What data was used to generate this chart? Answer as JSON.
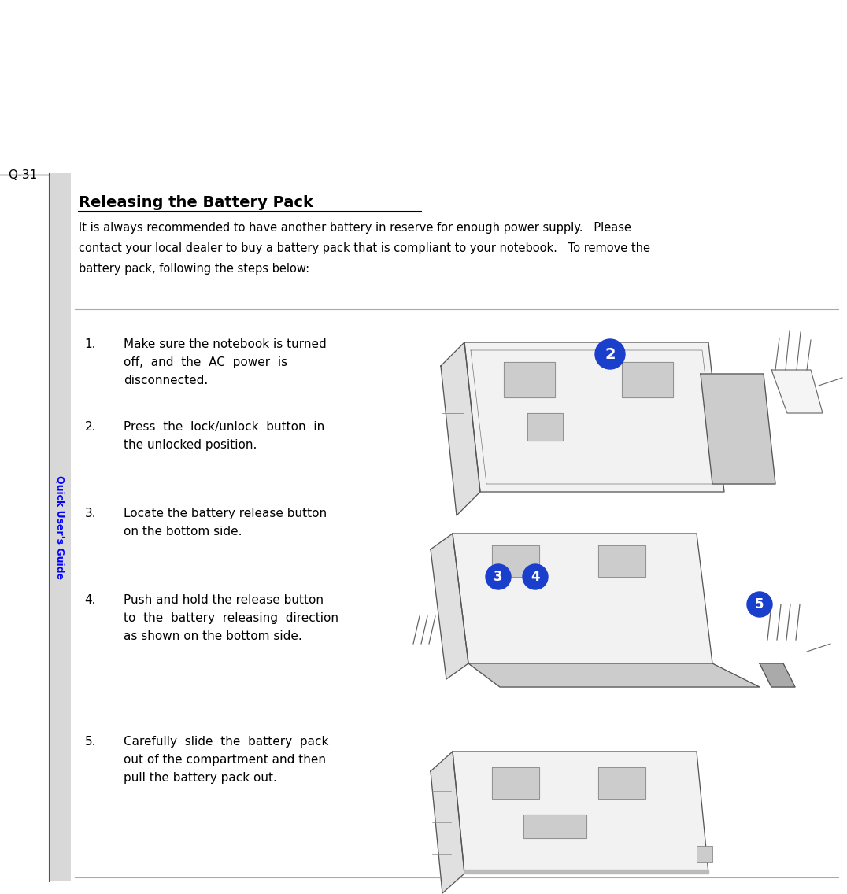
{
  "page_label": "Q-31",
  "sidebar_text": "Quick User's Guide",
  "sidebar_color": "#0000FF",
  "sidebar_bg": "#D8D8D8",
  "title": "Releasing the Battery Pack",
  "intro_lines": [
    "It is always recommended to have another battery in reserve for enough power supply.   Please",
    "contact your local dealer to buy a battery pack that is compliant to your notebook.   To remove the",
    "battery pack, following the steps below:"
  ],
  "step_numbers": [
    "1.",
    "2.",
    "3.",
    "4.",
    "5."
  ],
  "step_texts": [
    [
      "Make sure the notebook is turned",
      "off,  and  the  AC  power  is",
      "disconnected."
    ],
    [
      "Press  the  lock/unlock  button  in",
      "the unlocked position."
    ],
    [
      "Locate the battery release button",
      "on the bottom side."
    ],
    [
      "Push and hold the release button",
      "to  the  battery  releasing  direction",
      "as shown on the bottom side."
    ],
    [
      "Carefully  slide  the  battery  pack",
      "out of the compartment and then",
      "pull the battery pack out."
    ]
  ],
  "circle_color": "#1A3FCC",
  "background_color": "#FFFFFF",
  "text_color": "#000000",
  "divider_color": "#AAAAAA",
  "sidebar_bg_color": "#D8D8D8"
}
